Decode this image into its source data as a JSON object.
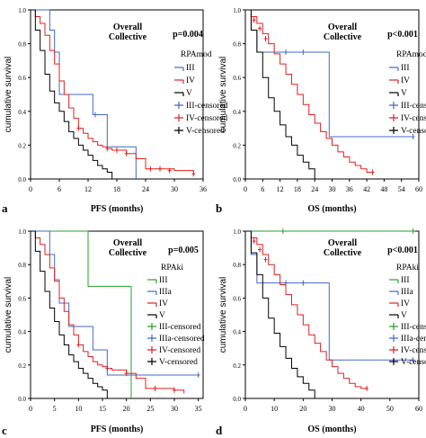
{
  "chart_data": [
    {
      "type": "line",
      "panel_label": "a",
      "header": [
        "Overall",
        "Collective"
      ],
      "p_value": "p=0.004",
      "legend_title": "RPAmod",
      "legend": [
        "III",
        "IV",
        "V",
        "III-censored",
        "IV-censored",
        "V-censored"
      ],
      "xlabel": "PFS (months)",
      "ylabel": "cumulative survival",
      "xlim": [
        0,
        36
      ],
      "ylim": [
        0,
        1
      ],
      "xticks": [
        "0",
        "6",
        "12",
        "18",
        "24",
        "30",
        "36"
      ],
      "yticks": [
        "0.0",
        "0.2",
        "0.4",
        "0.6",
        "0.8",
        "1.0"
      ],
      "series": [
        {
          "name": "III",
          "color": "#4169c8",
          "x": [
            0,
            2,
            4,
            5,
            6,
            8,
            10,
            12,
            13,
            14,
            16,
            18,
            20,
            22
          ],
          "y": [
            1.0,
            1.0,
            0.88,
            0.75,
            0.5,
            0.5,
            0.5,
            0.5,
            0.38,
            0.38,
            0.19,
            0.19,
            0.19,
            0.0
          ],
          "censored": [
            [
              13.5,
              0.38
            ]
          ]
        },
        {
          "name": "IV",
          "color": "#e02020",
          "x": [
            0,
            1,
            2,
            3,
            4,
            5,
            6,
            7,
            8,
            9,
            10,
            11,
            12,
            13,
            14,
            15,
            16,
            17,
            18,
            20,
            22,
            24,
            26,
            30,
            34
          ],
          "y": [
            1.0,
            0.96,
            0.92,
            0.85,
            0.76,
            0.68,
            0.58,
            0.5,
            0.42,
            0.36,
            0.3,
            0.27,
            0.24,
            0.22,
            0.2,
            0.19,
            0.18,
            0.17,
            0.17,
            0.15,
            0.12,
            0.06,
            0.06,
            0.05,
            0.03
          ],
          "censored": [
            [
              10,
              0.3
            ],
            [
              16,
              0.18
            ],
            [
              18,
              0.17
            ],
            [
              20,
              0.15
            ],
            [
              25,
              0.06
            ],
            [
              27,
              0.06
            ],
            [
              29,
              0.05
            ],
            [
              34,
              0.03
            ]
          ]
        },
        {
          "name": "V",
          "color": "#000000",
          "x": [
            0,
            1,
            2,
            3,
            4,
            5,
            6,
            7,
            8,
            9,
            10,
            11,
            12,
            13,
            14,
            15,
            16,
            17
          ],
          "y": [
            1.0,
            0.88,
            0.76,
            0.62,
            0.52,
            0.45,
            0.4,
            0.34,
            0.28,
            0.24,
            0.2,
            0.17,
            0.14,
            0.11,
            0.08,
            0.06,
            0.04,
            0.0
          ],
          "censored": []
        }
      ]
    },
    {
      "type": "line",
      "panel_label": "b",
      "header": [
        "Overall",
        "Collective"
      ],
      "p_value": "p<0.001",
      "legend_title": "RPAmod",
      "legend": [
        "III",
        "IV",
        "V",
        "III-censored",
        "IV-censored",
        "V-censored"
      ],
      "xlabel": "OS (months)",
      "ylabel": "cumulative survival",
      "xlim": [
        0,
        60
      ],
      "ylim": [
        0,
        1
      ],
      "xticks": [
        "0",
        "6",
        "12",
        "18",
        "24",
        "30",
        "36",
        "42",
        "48",
        "54",
        "60"
      ],
      "yticks": [
        "0.0",
        "0.2",
        "0.4",
        "0.6",
        "0.8",
        "1.0"
      ],
      "series": [
        {
          "name": "III",
          "color": "#4169c8",
          "x": [
            0,
            2,
            4,
            29,
            58
          ],
          "y": [
            1.0,
            0.88,
            0.75,
            0.25,
            0.25
          ],
          "censored": [
            [
              14,
              0.75
            ],
            [
              20,
              0.75
            ],
            [
              58,
              0.25
            ]
          ]
        },
        {
          "name": "IV",
          "color": "#e02020",
          "x": [
            0,
            2,
            4,
            6,
            8,
            10,
            12,
            14,
            16,
            18,
            20,
            22,
            24,
            26,
            28,
            30,
            32,
            34,
            36,
            38,
            40,
            42,
            44
          ],
          "y": [
            1.0,
            0.96,
            0.92,
            0.86,
            0.8,
            0.74,
            0.68,
            0.62,
            0.56,
            0.5,
            0.44,
            0.38,
            0.33,
            0.28,
            0.24,
            0.2,
            0.16,
            0.13,
            0.1,
            0.08,
            0.06,
            0.04,
            0.04
          ],
          "censored": [
            [
              3,
              0.94
            ],
            [
              5,
              0.89
            ],
            [
              7,
              0.83
            ],
            [
              44,
              0.04
            ]
          ]
        },
        {
          "name": "V",
          "color": "#000000",
          "x": [
            0,
            2,
            4,
            6,
            8,
            10,
            12,
            14,
            16,
            18,
            20,
            22,
            24
          ],
          "y": [
            1.0,
            0.88,
            0.75,
            0.6,
            0.48,
            0.4,
            0.32,
            0.25,
            0.2,
            0.14,
            0.1,
            0.06,
            0.0
          ],
          "censored": []
        }
      ]
    },
    {
      "type": "line",
      "panel_label": "c",
      "header": [
        "Overall",
        "Collective"
      ],
      "p_value": "p=0.005",
      "legend_title": "RPAki",
      "legend": [
        "III",
        "IIIa",
        "IV",
        "V",
        "III-censored",
        "IIIa-censored",
        "IV-censored",
        "V-censored"
      ],
      "xlabel": "PFS (months)",
      "ylabel": "cumulative survival",
      "xlim": [
        0,
        36
      ],
      "ylim": [
        0,
        1
      ],
      "xticks": [
        "0",
        "5",
        "10",
        "15",
        "20",
        "25",
        "30",
        "35"
      ],
      "yticks": [
        "0.0",
        "0.2",
        "0.4",
        "0.6",
        "0.8",
        "1.0"
      ],
      "series": [
        {
          "name": "III",
          "color": "#2aa02a",
          "x": [
            0,
            12,
            21
          ],
          "y": [
            1.0,
            0.67,
            0.0
          ],
          "censored": []
        },
        {
          "name": "IIIa",
          "color": "#4169c8",
          "x": [
            0,
            2,
            4,
            5,
            6,
            8,
            10,
            12,
            13,
            14,
            16,
            18,
            20,
            35
          ],
          "y": [
            1.0,
            1.0,
            0.86,
            0.71,
            0.57,
            0.43,
            0.43,
            0.43,
            0.29,
            0.29,
            0.14,
            0.14,
            0.14,
            0.14
          ],
          "censored": [
            [
              35,
              0.14
            ]
          ]
        },
        {
          "name": "IV",
          "color": "#e02020",
          "x": [
            0,
            1,
            2,
            3,
            4,
            5,
            6,
            7,
            8,
            9,
            10,
            11,
            12,
            13,
            14,
            15,
            16,
            17,
            18,
            20,
            22,
            24,
            26,
            30,
            32
          ],
          "y": [
            1.0,
            0.96,
            0.92,
            0.86,
            0.78,
            0.7,
            0.6,
            0.52,
            0.44,
            0.38,
            0.32,
            0.28,
            0.25,
            0.22,
            0.2,
            0.19,
            0.18,
            0.17,
            0.17,
            0.15,
            0.12,
            0.06,
            0.06,
            0.05,
            0.03
          ],
          "censored": [
            [
              10,
              0.32
            ],
            [
              16,
              0.18
            ],
            [
              20,
              0.15
            ],
            [
              26,
              0.06
            ],
            [
              30,
              0.05
            ]
          ]
        },
        {
          "name": "V",
          "color": "#000000",
          "x": [
            0,
            1,
            2,
            3,
            4,
            5,
            6,
            7,
            8,
            9,
            10,
            11,
            12,
            13,
            14,
            15,
            16
          ],
          "y": [
            1.0,
            0.88,
            0.76,
            0.64,
            0.54,
            0.46,
            0.38,
            0.32,
            0.26,
            0.22,
            0.18,
            0.15,
            0.12,
            0.09,
            0.07,
            0.05,
            0.0
          ],
          "censored": []
        }
      ]
    },
    {
      "type": "line",
      "panel_label": "d",
      "header": [
        "Overall",
        "Collective"
      ],
      "p_value": "p<0.001",
      "legend_title": "RPAki",
      "legend": [
        "III",
        "IIIa",
        "IV",
        "V",
        "III-censored",
        "IIIa-censored",
        "IV-censored",
        "V-censored"
      ],
      "xlabel": "OS (months)",
      "ylabel": "cumulative survival",
      "xlim": [
        0,
        60
      ],
      "ylim": [
        0,
        1
      ],
      "xticks": [
        "0",
        "10",
        "20",
        "30",
        "40",
        "50",
        "60"
      ],
      "yticks": [
        "0.0",
        "0.2",
        "0.4",
        "0.6",
        "0.8",
        "1.0"
      ],
      "series": [
        {
          "name": "III",
          "color": "#2aa02a",
          "x": [
            0,
            58
          ],
          "y": [
            1.0,
            1.0
          ],
          "censored": [
            [
              13,
              1.0
            ],
            [
              58,
              1.0
            ]
          ]
        },
        {
          "name": "IIIa",
          "color": "#4169c8",
          "x": [
            0,
            2,
            4,
            29,
            58
          ],
          "y": [
            1.0,
            0.86,
            0.69,
            0.23,
            0.23
          ],
          "censored": [
            [
              14,
              0.69
            ],
            [
              20,
              0.69
            ],
            [
              58,
              0.23
            ]
          ]
        },
        {
          "name": "IV",
          "color": "#e02020",
          "x": [
            0,
            2,
            4,
            6,
            8,
            10,
            12,
            14,
            16,
            18,
            20,
            22,
            24,
            26,
            28,
            30,
            32,
            34,
            36,
            38,
            40,
            42
          ],
          "y": [
            1.0,
            0.96,
            0.92,
            0.86,
            0.8,
            0.74,
            0.68,
            0.62,
            0.56,
            0.5,
            0.44,
            0.38,
            0.33,
            0.28,
            0.23,
            0.19,
            0.15,
            0.12,
            0.09,
            0.07,
            0.06,
            0.06
          ],
          "censored": [
            [
              3,
              0.94
            ],
            [
              5,
              0.89
            ],
            [
              7,
              0.83
            ],
            [
              42,
              0.06
            ]
          ]
        },
        {
          "name": "V",
          "color": "#000000",
          "x": [
            0,
            2,
            4,
            6,
            8,
            10,
            12,
            14,
            16,
            18,
            20,
            22,
            24
          ],
          "y": [
            1.0,
            0.87,
            0.74,
            0.6,
            0.48,
            0.39,
            0.31,
            0.24,
            0.18,
            0.13,
            0.09,
            0.05,
            0.0
          ],
          "censored": []
        }
      ]
    }
  ]
}
